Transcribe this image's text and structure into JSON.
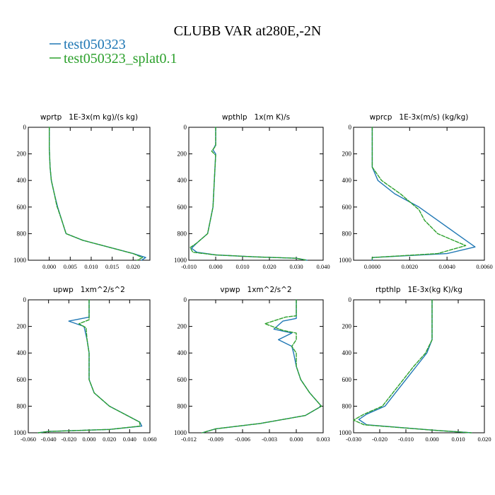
{
  "figure": {
    "title": "CLUBB VAR at280E,-2N",
    "legend": [
      {
        "label": "test050323",
        "color": "#1f77b4"
      },
      {
        "label": "test050323_splat0.1",
        "color": "#2ca02c"
      }
    ]
  },
  "chart_data": [
    {
      "type": "line",
      "title": "wprtp   1E-3x(m kg)/(s kg)",
      "xlim": [
        -0.005,
        0.024
      ],
      "xticks": [
        0.0,
        0.005,
        0.01,
        0.015,
        0.02
      ],
      "xtick_labels": [
        "0.000",
        "0.005",
        "0.010",
        "0.015",
        "0.020"
      ],
      "ylim": [
        0,
        1000
      ],
      "yticks": [
        0,
        200,
        400,
        600,
        800,
        1000
      ],
      "ytick_labels": [
        "0",
        "200",
        "400",
        "600",
        "800",
        "1000"
      ],
      "y_inverted": true,
      "series": [
        {
          "name": "test050323",
          "points": [
            [
              0.0,
              0
            ],
            [
              0.0,
              150
            ],
            [
              0.0002,
              300
            ],
            [
              0.0005,
              400
            ],
            [
              0.0012,
              500
            ],
            [
              0.002,
              600
            ],
            [
              0.003,
              700
            ],
            [
              0.004,
              800
            ],
            [
              0.008,
              850
            ],
            [
              0.014,
              900
            ],
            [
              0.02,
              950
            ],
            [
              0.023,
              980
            ],
            [
              0.022,
              1000
            ]
          ]
        },
        {
          "name": "test050323_splat0.1",
          "points": [
            [
              0.0,
              0
            ],
            [
              0.0,
              150
            ],
            [
              0.0002,
              300
            ],
            [
              0.0005,
              400
            ],
            [
              0.0012,
              500
            ],
            [
              0.0018,
              590
            ],
            [
              0.003,
              700
            ],
            [
              0.004,
              800
            ],
            [
              0.008,
              850
            ],
            [
              0.014,
              900
            ],
            [
              0.02,
              950
            ],
            [
              0.0222,
              980
            ],
            [
              0.021,
              1000
            ]
          ]
        }
      ]
    },
    {
      "type": "line",
      "title": "wpthlp   1x(m K)/s",
      "xlim": [
        -0.01,
        0.04
      ],
      "xticks": [
        -0.01,
        0.0,
        0.01,
        0.02,
        0.03,
        0.04
      ],
      "xtick_labels": [
        "-0.010",
        "0.000",
        "0.010",
        "0.020",
        "0.030",
        "0.040"
      ],
      "ylim": [
        0,
        1000
      ],
      "yticks": [
        0,
        200,
        400,
        600,
        800,
        1000
      ],
      "ytick_labels": [
        "0",
        "200",
        "400",
        "600",
        "800",
        "1000"
      ],
      "y_inverted": true,
      "series": [
        {
          "name": "test050323",
          "points": [
            [
              0.0,
              0
            ],
            [
              0.0,
              130
            ],
            [
              -0.001,
              170
            ],
            [
              0.0,
              200
            ],
            [
              -0.0005,
              400
            ],
            [
              -0.001,
              600
            ],
            [
              -0.003,
              800
            ],
            [
              -0.007,
              870
            ],
            [
              -0.009,
              910
            ],
            [
              -0.007,
              940
            ],
            [
              0.0,
              960
            ],
            [
              0.015,
              975
            ],
            [
              0.03,
              985
            ],
            [
              0.034,
              1000
            ]
          ]
        },
        {
          "name": "test050323_splat0.1",
          "points": [
            [
              0.0,
              0
            ],
            [
              0.0,
              140
            ],
            [
              -0.0015,
              180
            ],
            [
              0.0,
              210
            ],
            [
              -0.0005,
              400
            ],
            [
              -0.001,
              600
            ],
            [
              -0.003,
              800
            ],
            [
              -0.007,
              870
            ],
            [
              -0.0095,
              905
            ],
            [
              -0.0085,
              940
            ],
            [
              0.0,
              960
            ],
            [
              0.015,
              975
            ],
            [
              0.03,
              985
            ],
            [
              0.034,
              1000
            ]
          ]
        }
      ]
    },
    {
      "type": "line",
      "title": "wprcp   1E-3x(m/s) (kg/kg)",
      "xlim": [
        -0.001,
        0.006
      ],
      "xticks": [
        0.0,
        0.002,
        0.004,
        0.006
      ],
      "xtick_labels": [
        "0.0000",
        "0.0020",
        "0.0040",
        "0.0060"
      ],
      "ylim": [
        0,
        1000
      ],
      "yticks": [
        0,
        200,
        400,
        600,
        800,
        1000
      ],
      "ytick_labels": [
        "0",
        "200",
        "400",
        "600",
        "800",
        "1000"
      ],
      "y_inverted": true,
      "series": [
        {
          "name": "test050323",
          "points": [
            [
              0.0,
              0
            ],
            [
              0.0,
              300
            ],
            [
              0.0003,
              400
            ],
            [
              0.0012,
              500
            ],
            [
              0.0025,
              600
            ],
            [
              0.0035,
              700
            ],
            [
              0.0045,
              800
            ],
            [
              0.0055,
              900
            ],
            [
              0.004,
              950
            ],
            [
              0.0,
              980
            ],
            [
              0.0,
              1000
            ]
          ]
        },
        {
          "name": "test050323_splat0.1",
          "points": [
            [
              0.0,
              0
            ],
            [
              0.0,
              300
            ],
            [
              0.0005,
              400
            ],
            [
              0.0015,
              500
            ],
            [
              0.0025,
              620
            ],
            [
              0.0028,
              700
            ],
            [
              0.0035,
              800
            ],
            [
              0.005,
              890
            ],
            [
              0.0035,
              950
            ],
            [
              0.0,
              980
            ],
            [
              0.0,
              1000
            ]
          ]
        }
      ]
    },
    {
      "type": "line",
      "title": "upwp   1xm^2/s^2",
      "xlim": [
        -0.06,
        0.06
      ],
      "xticks": [
        -0.06,
        -0.04,
        -0.02,
        0.0,
        0.02,
        0.04,
        0.06
      ],
      "xtick_labels": [
        "-0.060",
        "-0.040",
        "-0.020",
        "0.000",
        "0.020",
        "0.040",
        "0.060"
      ],
      "ylim": [
        0,
        1000
      ],
      "yticks": [
        0,
        200,
        400,
        600,
        800,
        1000
      ],
      "ytick_labels": [
        "0",
        "200",
        "400",
        "600",
        "800",
        "1000"
      ],
      "y_inverted": true,
      "series": [
        {
          "name": "test050323",
          "points": [
            [
              0.0,
              0
            ],
            [
              0.0,
              130
            ],
            [
              -0.02,
              160
            ],
            [
              -0.005,
              200
            ],
            [
              -0.002,
              300
            ],
            [
              0.0,
              400
            ],
            [
              0.0,
              600
            ],
            [
              0.005,
              700
            ],
            [
              0.02,
              800
            ],
            [
              0.04,
              880
            ],
            [
              0.05,
              920
            ],
            [
              0.052,
              950
            ],
            [
              0.02,
              975
            ],
            [
              -0.04,
              990
            ],
            [
              -0.05,
              1000
            ]
          ]
        },
        {
          "name": "test050323_splat0.1",
          "points": [
            [
              0.0,
              0
            ],
            [
              0.0,
              150
            ],
            [
              -0.01,
              180
            ],
            [
              -0.003,
              210
            ],
            [
              -0.002,
              300
            ],
            [
              0.0,
              400
            ],
            [
              0.0,
              600
            ],
            [
              0.005,
              700
            ],
            [
              0.02,
              800
            ],
            [
              0.04,
              880
            ],
            [
              0.05,
              920
            ],
            [
              0.05,
              950
            ],
            [
              0.02,
              975
            ],
            [
              -0.04,
              990
            ],
            [
              -0.05,
              1000
            ]
          ]
        }
      ]
    },
    {
      "type": "line",
      "title": "vpwp   1xm^2/s^2",
      "xlim": [
        -0.012,
        0.003
      ],
      "xticks": [
        -0.012,
        -0.009,
        -0.006,
        -0.003,
        0.0,
        0.003
      ],
      "xtick_labels": [
        "-0.012",
        "-0.009",
        "-0.006",
        "-0.003",
        "0.000",
        "0.003"
      ],
      "ylim": [
        0,
        1000
      ],
      "yticks": [
        0,
        200,
        400,
        600,
        800,
        1000
      ],
      "ytick_labels": [
        "0",
        "200",
        "400",
        "600",
        "800",
        "1000"
      ],
      "y_inverted": true,
      "series": [
        {
          "name": "test050323",
          "points": [
            [
              0.0,
              0
            ],
            [
              0.0,
              140
            ],
            [
              -0.0015,
              160
            ],
            [
              -0.0025,
              220
            ],
            [
              -0.0005,
              250
            ],
            [
              -0.002,
              300
            ],
            [
              -0.0005,
              350
            ],
            [
              -0.0003,
              400
            ],
            [
              0.0,
              500
            ],
            [
              0.0005,
              600
            ],
            [
              0.0015,
              700
            ],
            [
              0.0028,
              800
            ],
            [
              0.001,
              870
            ],
            [
              -0.004,
              930
            ],
            [
              -0.009,
              970
            ],
            [
              -0.0105,
              1000
            ]
          ]
        },
        {
          "name": "test050323_splat0.1",
          "points": [
            [
              0.0,
              0
            ],
            [
              0.0,
              120
            ],
            [
              -0.0012,
              130
            ],
            [
              -0.0035,
              180
            ],
            [
              -0.0015,
              230
            ],
            [
              0.0,
              250
            ],
            [
              0.0,
              300
            ],
            [
              -0.0005,
              350
            ],
            [
              0.0,
              400
            ],
            [
              0.0,
              500
            ],
            [
              0.0005,
              600
            ],
            [
              0.0015,
              700
            ],
            [
              0.0028,
              800
            ],
            [
              0.001,
              870
            ],
            [
              -0.004,
              930
            ],
            [
              -0.009,
              970
            ],
            [
              -0.0105,
              1000
            ]
          ]
        }
      ]
    },
    {
      "type": "line",
      "title": "rtpthlp   1E-3x(kg K)/kg",
      "xlim": [
        -0.03,
        0.02
      ],
      "xticks": [
        -0.03,
        -0.02,
        -0.01,
        0.0,
        0.01,
        0.02
      ],
      "xtick_labels": [
        "-0.030",
        "-0.020",
        "-0.010",
        "0.000",
        "0.010",
        "0.020"
      ],
      "ylim": [
        0,
        1000
      ],
      "yticks": [
        0,
        200,
        400,
        600,
        800,
        1000
      ],
      "ytick_labels": [
        "0",
        "200",
        "400",
        "600",
        "800",
        "1000"
      ],
      "y_inverted": true,
      "series": [
        {
          "name": "test050323",
          "points": [
            [
              0.0,
              0
            ],
            [
              0.0,
              300
            ],
            [
              -0.002,
              400
            ],
            [
              -0.006,
              500
            ],
            [
              -0.01,
              600
            ],
            [
              -0.014,
              700
            ],
            [
              -0.018,
              800
            ],
            [
              -0.025,
              860
            ],
            [
              -0.028,
              900
            ],
            [
              -0.025,
              940
            ],
            [
              0.0,
              980
            ],
            [
              0.015,
              1000
            ]
          ]
        },
        {
          "name": "test050323_splat0.1",
          "points": [
            [
              0.0,
              0
            ],
            [
              0.0,
              300
            ],
            [
              -0.0025,
              400
            ],
            [
              -0.007,
              500
            ],
            [
              -0.011,
              600
            ],
            [
              -0.015,
              700
            ],
            [
              -0.019,
              800
            ],
            [
              -0.026,
              860
            ],
            [
              -0.03,
              905
            ],
            [
              -0.026,
              940
            ],
            [
              0.0,
              980
            ],
            [
              0.015,
              1000
            ]
          ]
        }
      ]
    }
  ]
}
